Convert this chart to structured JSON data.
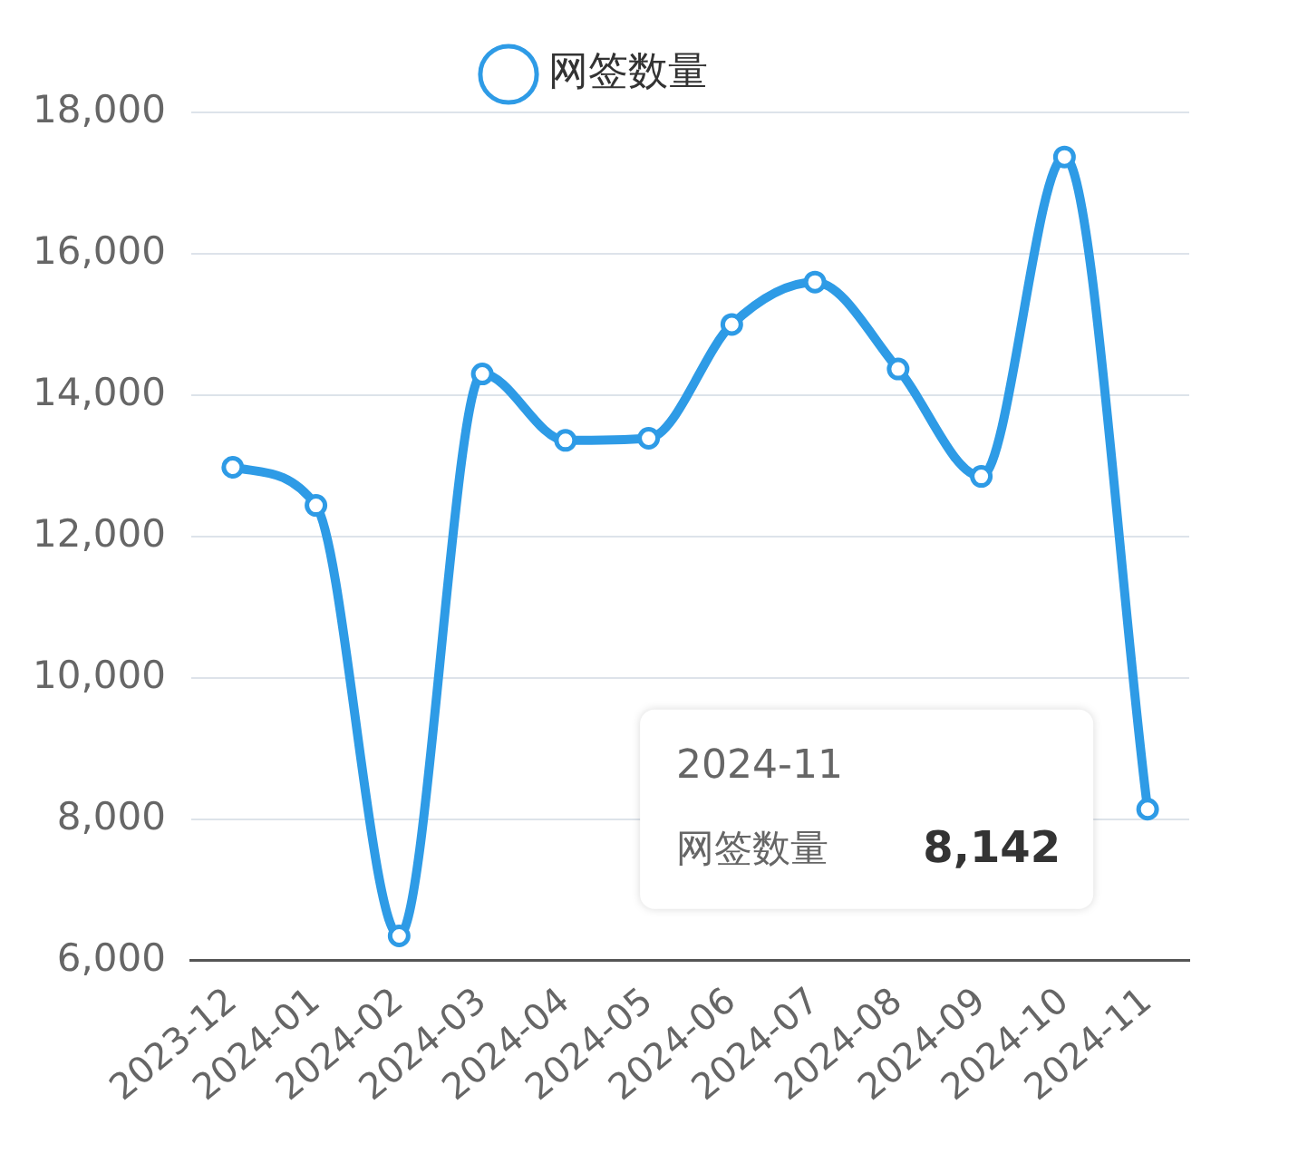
{
  "chart_data": {
    "type": "line",
    "categories": [
      "2023-12",
      "2024-01",
      "2024-02",
      "2024-03",
      "2024-04",
      "2024-05",
      "2024-06",
      "2024-07",
      "2024-08",
      "2024-09",
      "2024-10",
      "2024-11"
    ],
    "series": [
      {
        "name": "网签数量",
        "color": "#2e9be6",
        "values": [
          12980,
          12440,
          6350,
          14300,
          13360,
          13390,
          15000,
          15600,
          14370,
          12850,
          17370,
          8142
        ],
        "value_labels": [
          null,
          null,
          null,
          null,
          null,
          null,
          null,
          null,
          null,
          null,
          null,
          "8,142"
        ]
      }
    ],
    "ylim": [
      6000,
      18000
    ],
    "yticks": [
      {
        "value": 6000,
        "label": "6,000"
      },
      {
        "value": 8000,
        "label": "8,000"
      },
      {
        "value": 10000,
        "label": "10,000"
      },
      {
        "value": 12000,
        "label": "12,000"
      },
      {
        "value": 14000,
        "label": "14,000"
      },
      {
        "value": 16000,
        "label": "16,000"
      },
      {
        "value": 18000,
        "label": "18,000"
      }
    ],
    "grid": "y",
    "legend": "top",
    "marker": "circle",
    "line_style": "solid"
  }
}
